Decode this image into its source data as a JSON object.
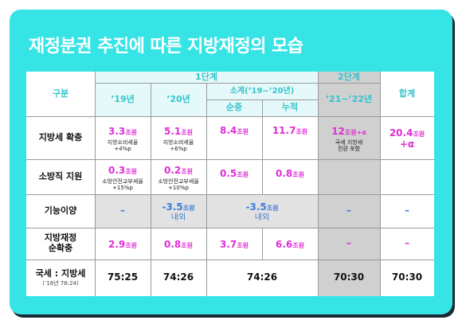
{
  "title": "재정분권 추진에 따른 지방재정의 모습",
  "colors": {
    "frame": "#36e4e6",
    "header_text": "#35c3cc",
    "pink": "#e02ed6",
    "blue": "#3e7ed6"
  },
  "header": {
    "category": "구분",
    "stage1": "1단계",
    "stage2": "2단계",
    "total": "합계",
    "y19": "’19년",
    "y20": "’20년",
    "subtotal": "소계(’19~’20년)",
    "net": "순증",
    "cumulative": "누적",
    "y21_22": "’21~’22년"
  },
  "rows": {
    "local_tax": {
      "label": "지방세 확충",
      "y19_val": "3.3",
      "y19_unit": "조원",
      "y19_note1": "지방소비세율",
      "y19_note2": "+4%p",
      "y20_val": "5.1",
      "y20_unit": "조원",
      "y20_note1": "지방소비세율",
      "y20_note2": "+6%p",
      "net_val": "8.4",
      "net_unit": "조원",
      "cum_val": "11.7",
      "cum_unit": "조원",
      "st2_val": "12",
      "st2_unit": "조원+α",
      "st2_note1": "국세 지방세",
      "st2_note2": "전환 포함",
      "total_val": "20.4",
      "total_unit": "조원",
      "total_tail": "+α"
    },
    "fire": {
      "label": "소방직 지원",
      "y19_val": "0.3",
      "y19_unit": "조원",
      "y19_note1": "소방안전교부세율",
      "y19_note2": "+15%p",
      "y20_val": "0.2",
      "y20_unit": "조원",
      "y20_note1": "소방안전교부세율",
      "y20_note2": "+10%p",
      "net_val": "0.5",
      "net_unit": "조원",
      "cum_val": "0.8",
      "cum_unit": "조원"
    },
    "transfer": {
      "label": "기능이양",
      "y19_val": "–",
      "y20_val": "-3.5",
      "y20_unit": "조원",
      "y20_note": "내외",
      "sub_val": "-3.5",
      "sub_unit": "조원",
      "sub_note": "내외",
      "st2_val": "–",
      "total_val": "–"
    },
    "finance": {
      "label1": "지방재정",
      "label2": "순확충",
      "y19_val": "2.9",
      "y19_unit": "조원",
      "y20_val": "0.8",
      "y20_unit": "조원",
      "net_val": "3.7",
      "net_unit": "조원",
      "cum_val": "6.6",
      "cum_unit": "조원",
      "st2_val": "–",
      "total_val": "–"
    },
    "ratio": {
      "label": "국세 : 지방세",
      "sub": "(’16년 76:24)",
      "y19": "75:25",
      "y20": "74:26",
      "subtotal": "74:26",
      "st2": "70:30",
      "total": "70:30"
    }
  }
}
